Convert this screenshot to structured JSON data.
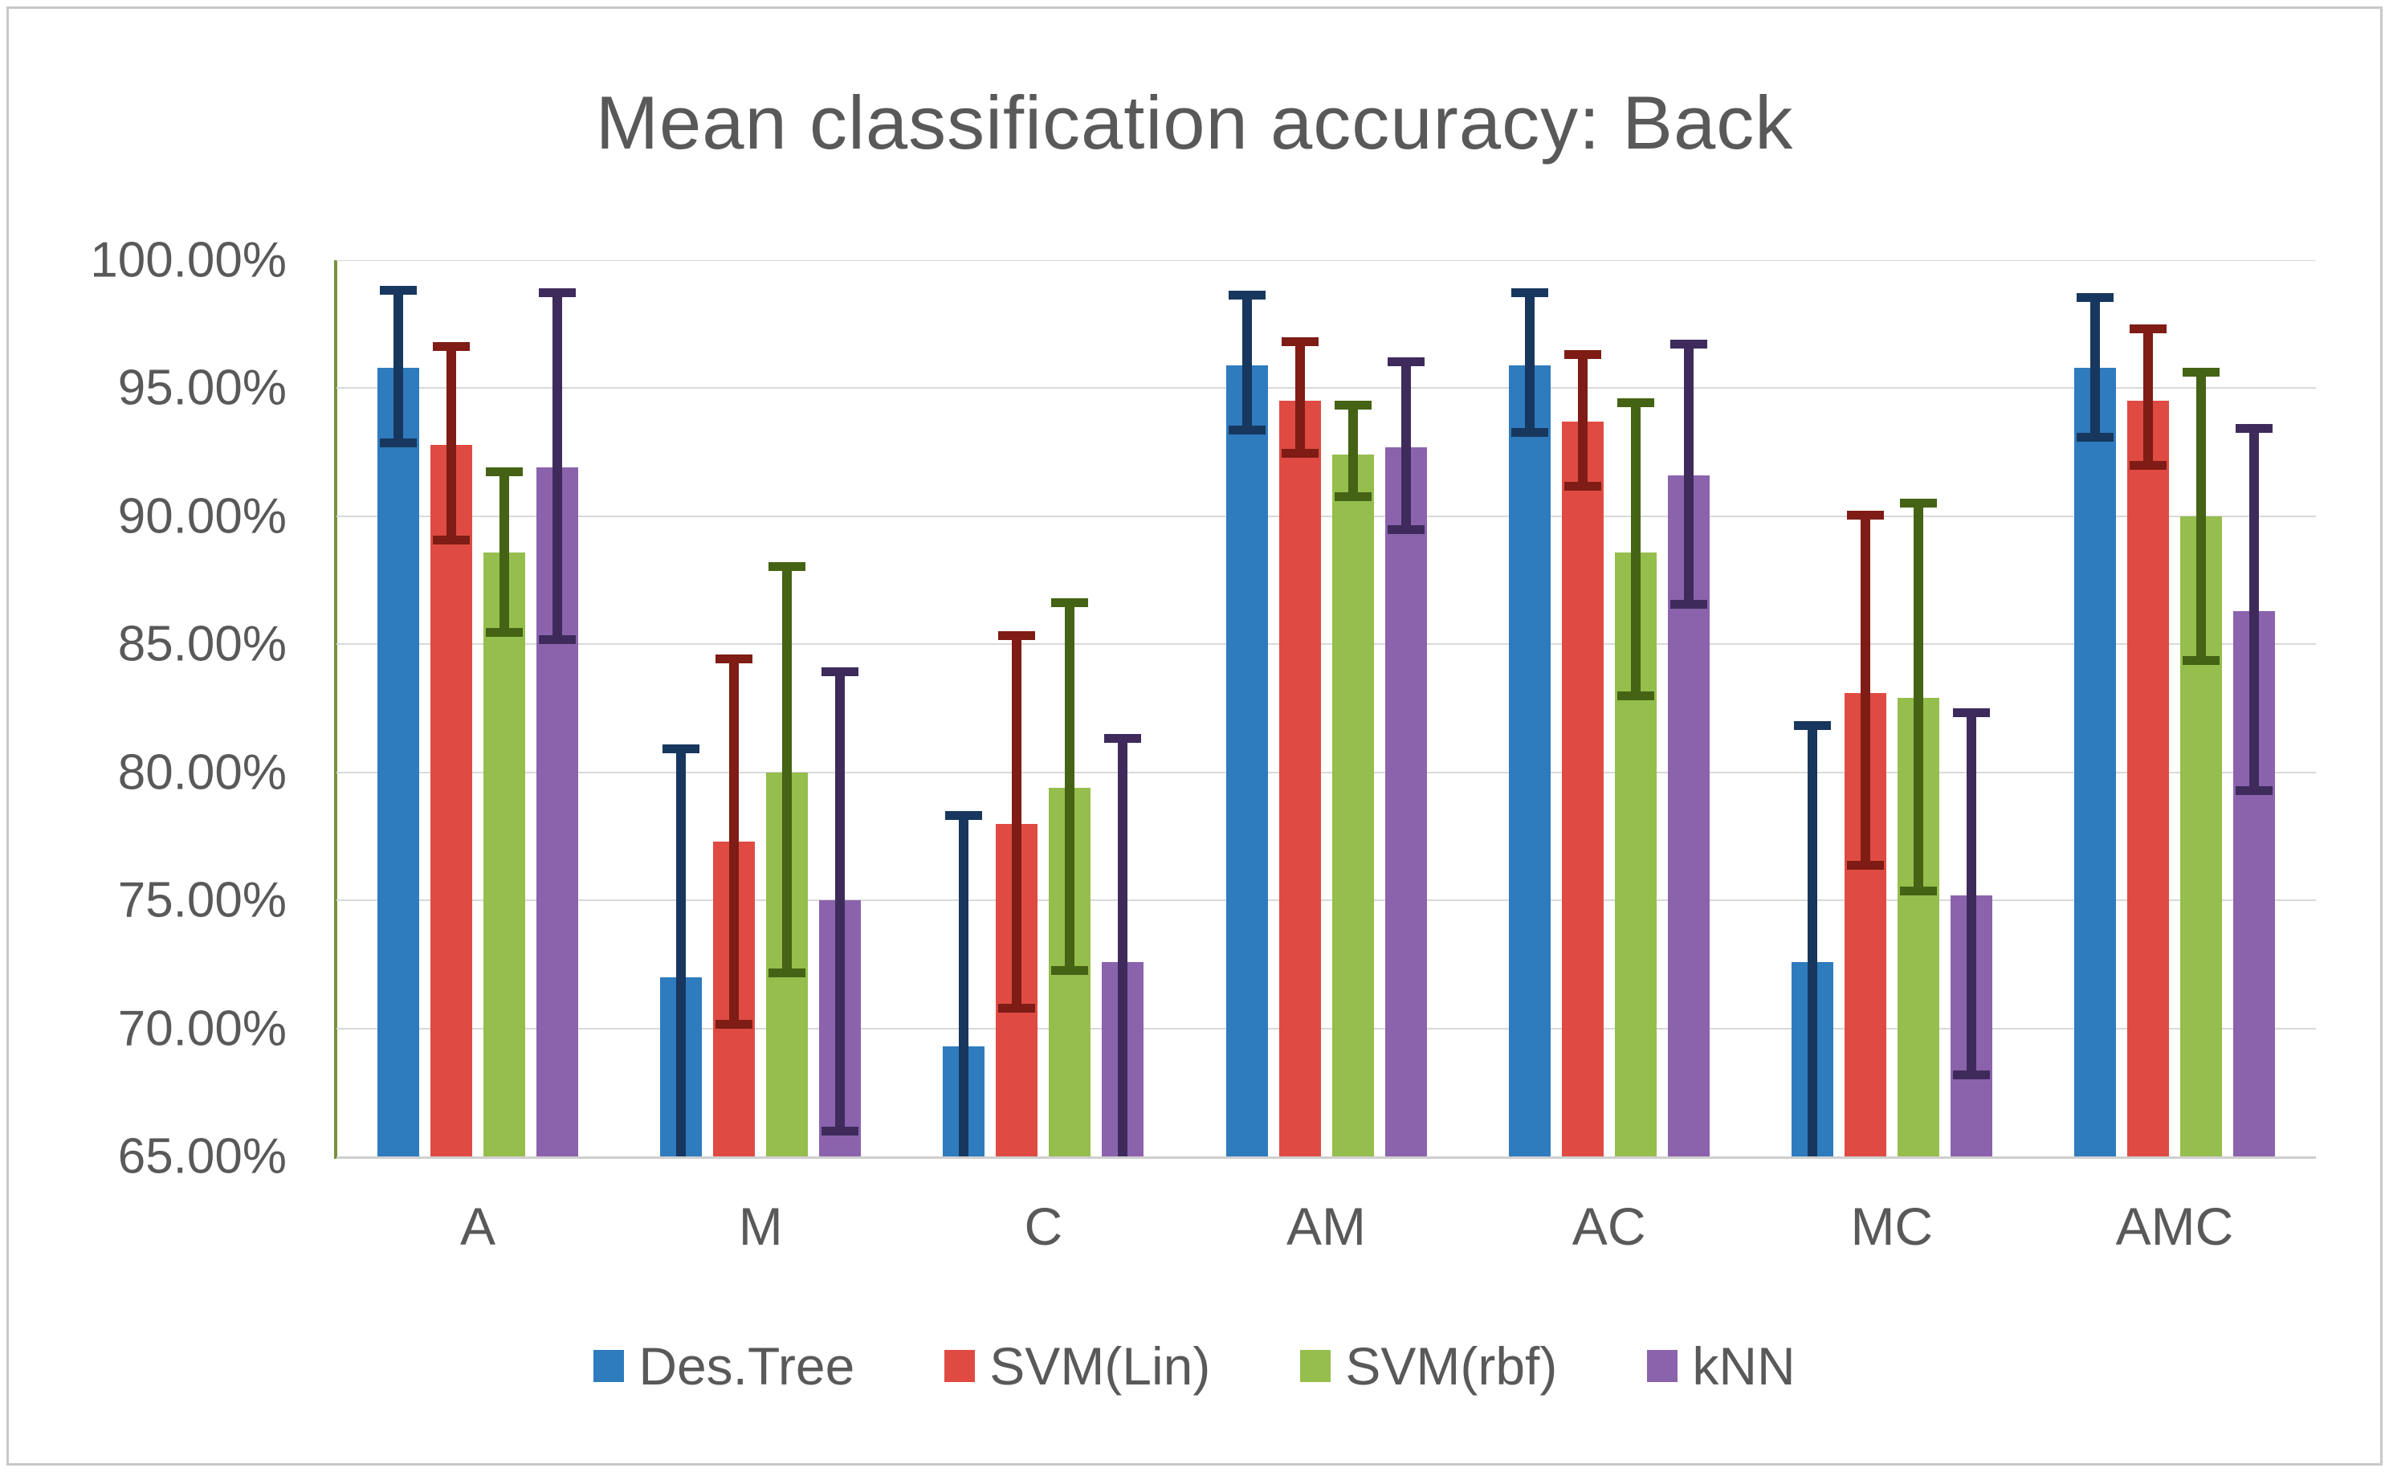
{
  "chart_data": {
    "type": "bar",
    "title": "Mean classification accuracy: Back",
    "title_color": "#595959",
    "categories": [
      "A",
      "M",
      "C",
      "AM",
      "AC",
      "MC",
      "AMC"
    ],
    "y_tick_labels": [
      "100.00%",
      "95.00%",
      "90.00%",
      "85.00%",
      "80.00%",
      "75.00%",
      "70.00%",
      "65.00%"
    ],
    "y_tick_values": [
      100,
      95,
      90,
      85,
      80,
      75,
      70,
      65
    ],
    "ylim": [
      65,
      100
    ],
    "grid_on": true,
    "grid_color": "#d9d9d9",
    "y_axis_line_color": "#76923c",
    "x_axis_line_color": "#cfcfcf",
    "legend_position": "bottom",
    "error_bars": true,
    "series": [
      {
        "name": "Des.Tree",
        "color": "#2e7bbe",
        "error_color": "#17375e",
        "values": [
          95.8,
          72.0,
          69.3,
          95.9,
          95.9,
          72.6,
          95.8
        ],
        "err_low": [
          92.7,
          62.9,
          60.1,
          93.2,
          93.1,
          63.2,
          92.9
        ],
        "err_high": [
          99.0,
          81.1,
          78.5,
          98.8,
          98.9,
          82.0,
          98.7
        ]
      },
      {
        "name": "SVM(Lin)",
        "color": "#df4b42",
        "error_color": "#7e1c15",
        "values": [
          92.8,
          77.3,
          78.0,
          94.5,
          93.7,
          83.1,
          94.5
        ],
        "err_low": [
          88.9,
          70.0,
          70.6,
          92.3,
          91.0,
          76.2,
          91.8
        ],
        "err_high": [
          96.8,
          84.6,
          85.5,
          97.0,
          96.5,
          90.2,
          97.5
        ]
      },
      {
        "name": "SVM(rbf)",
        "color": "#95be4d",
        "error_color": "#456314",
        "values": [
          88.6,
          80.0,
          79.4,
          92.4,
          88.6,
          82.9,
          90.0
        ],
        "err_low": [
          85.3,
          72.0,
          72.1,
          90.6,
          82.8,
          75.2,
          84.2
        ],
        "err_high": [
          91.9,
          88.2,
          86.8,
          94.5,
          94.6,
          90.7,
          95.8
        ]
      },
      {
        "name": "kNN",
        "color": "#8b63ad",
        "error_color": "#3e2b5c",
        "values": [
          91.9,
          75.0,
          72.6,
          92.7,
          91.6,
          75.2,
          86.3
        ],
        "err_low": [
          85.0,
          65.8,
          63.7,
          89.3,
          86.4,
          68.0,
          79.1
        ],
        "err_high": [
          98.9,
          84.1,
          81.5,
          96.2,
          96.9,
          82.5,
          93.6
        ]
      }
    ],
    "legend": [
      "Des.Tree",
      "SVM(Lin)",
      "SVM(rbf)",
      "kNN"
    ]
  }
}
